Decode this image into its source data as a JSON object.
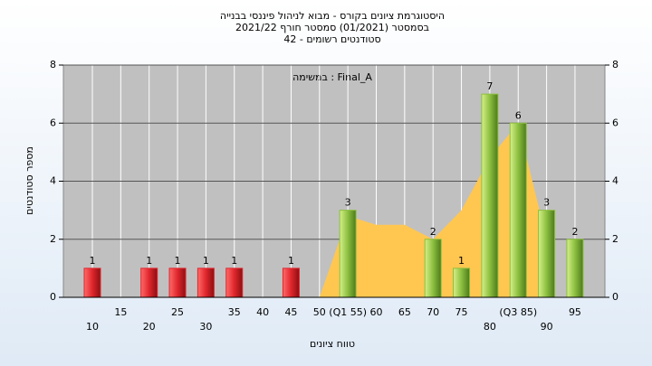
{
  "chart_data": {
    "type": "bar",
    "title": [
      "היסטוגרמת ציונים בקורס - מבוא לניהול פיננסי בבנייה",
      "בסמסטר  (01/2021)  סמסטר חורף 2021/22",
      "סטודנטים רשומים - 42"
    ],
    "annotation": "במשימה : Final_A",
    "ylabel": "מספר סטודנטים",
    "xlabel": "טווח ציונים",
    "categories": [
      "10",
      "15",
      "20",
      "25",
      "30",
      "35",
      "40",
      "45",
      "50",
      "(Q1 55)",
      "60",
      "65",
      "70",
      "75",
      "80",
      "(Q3 85)",
      "90",
      "95"
    ],
    "series": [
      {
        "color": "#e0262c",
        "values": [
          1,
          null,
          1,
          1,
          1,
          1,
          null,
          1,
          null,
          null,
          null,
          null,
          null,
          null,
          null,
          null,
          null,
          null
        ]
      },
      {
        "color": "#8cbf3f",
        "values": [
          null,
          null,
          null,
          null,
          null,
          null,
          null,
          null,
          null,
          3,
          null,
          null,
          2,
          1,
          7,
          6,
          3,
          2
        ]
      }
    ],
    "area": {
      "color": "#ffc750",
      "values": [
        null,
        null,
        null,
        null,
        null,
        null,
        null,
        null,
        0,
        2.8,
        2.5,
        2.5,
        2,
        3,
        4.8,
        6,
        2,
        null
      ]
    },
    "ylim": [
      0,
      8
    ],
    "yticks": [
      0,
      2,
      4,
      6,
      8
    ],
    "y2lim": [
      0,
      8
    ],
    "y2ticks": [
      0,
      2,
      4,
      6,
      8
    ],
    "grid": true
  }
}
